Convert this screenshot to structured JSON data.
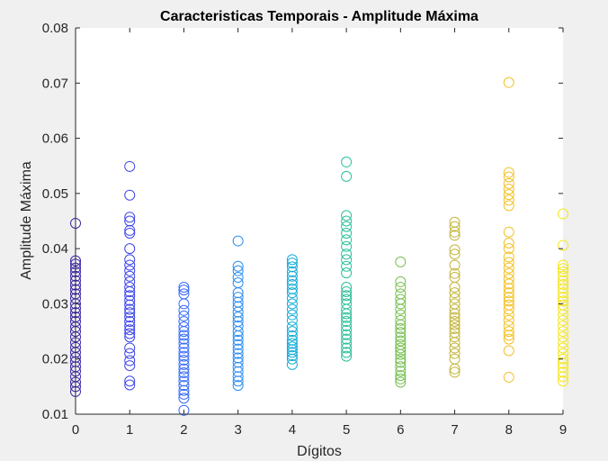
{
  "chart_data": {
    "type": "scatter",
    "title": "Caracteristicas Temporais - Amplitude Máxima",
    "xlabel": "Dígitos",
    "ylabel": "Amplitude Máxima",
    "xlim": [
      0,
      9
    ],
    "ylim": [
      0.01,
      0.08
    ],
    "xticks": [
      "0",
      "1",
      "2",
      "3",
      "4",
      "5",
      "6",
      "7",
      "8",
      "9"
    ],
    "yticks": [
      "0.01",
      "0.02",
      "0.03",
      "0.04",
      "0.05",
      "0.06",
      "0.07",
      "0.08"
    ],
    "grid": false,
    "marker": "circle",
    "series": [
      {
        "x": 0,
        "color": "#3e26a8",
        "values": [
          0.0446,
          0.0378,
          0.0372,
          0.0365,
          0.0358,
          0.035,
          0.0342,
          0.0334,
          0.0326,
          0.0318,
          0.031,
          0.03,
          0.0292,
          0.0284,
          0.0276,
          0.0268,
          0.0258,
          0.025,
          0.024,
          0.023,
          0.0221,
          0.0212,
          0.0203,
          0.0195,
          0.0186,
          0.0178,
          0.0168,
          0.0158,
          0.015,
          0.0141
        ]
      },
      {
        "x": 1,
        "color": "#3e47e8",
        "values": [
          0.0549,
          0.0497,
          0.0457,
          0.045,
          0.0433,
          0.0428,
          0.04,
          0.038,
          0.037,
          0.036,
          0.035,
          0.034,
          0.033,
          0.0322,
          0.0315,
          0.0306,
          0.0298,
          0.029,
          0.0284,
          0.0276,
          0.0268,
          0.026,
          0.0253,
          0.0246,
          0.024,
          0.022,
          0.021,
          0.0197,
          0.0188,
          0.016,
          0.0153
        ]
      },
      {
        "x": 2,
        "color": "#3a6df9",
        "values": [
          0.033,
          0.0325,
          0.0318,
          0.03,
          0.0288,
          0.0278,
          0.0268,
          0.0258,
          0.025,
          0.0243,
          0.0236,
          0.0228,
          0.022,
          0.0212,
          0.0205,
          0.0198,
          0.019,
          0.0182,
          0.0175,
          0.0168,
          0.016,
          0.0152,
          0.0143,
          0.0136,
          0.0129,
          0.0107
        ]
      },
      {
        "x": 3,
        "color": "#2c8ef2",
        "values": [
          0.0414,
          0.0368,
          0.036,
          0.0348,
          0.0338,
          0.032,
          0.0312,
          0.0303,
          0.0295,
          0.0285,
          0.0276,
          0.0268,
          0.026,
          0.025,
          0.0242,
          0.0234,
          0.0226,
          0.0218,
          0.021,
          0.0202,
          0.0194,
          0.0185,
          0.0177,
          0.0168,
          0.016,
          0.0152
        ]
      },
      {
        "x": 4,
        "color": "#14acd8",
        "values": [
          0.038,
          0.0374,
          0.0367,
          0.0358,
          0.035,
          0.0342,
          0.0335,
          0.0327,
          0.032,
          0.031,
          0.03,
          0.029,
          0.028,
          0.027,
          0.0258,
          0.025,
          0.0242,
          0.0234,
          0.0228,
          0.0222,
          0.0217,
          0.0212,
          0.0206,
          0.02,
          0.019
        ]
      },
      {
        "x": 5,
        "color": "#2cc09b",
        "values": [
          0.0557,
          0.0531,
          0.046,
          0.045,
          0.044,
          0.0428,
          0.0416,
          0.0404,
          0.039,
          0.038,
          0.0368,
          0.0356,
          0.033,
          0.0322,
          0.0315,
          0.0308,
          0.03,
          0.029,
          0.0282,
          0.0275,
          0.0268,
          0.026,
          0.0252,
          0.0244,
          0.0236,
          0.0228,
          0.022,
          0.0212,
          0.0205
        ]
      },
      {
        "x": 6,
        "color": "#78c052",
        "values": [
          0.0376,
          0.034,
          0.033,
          0.0318,
          0.0308,
          0.03,
          0.029,
          0.028,
          0.027,
          0.0262,
          0.0255,
          0.0248,
          0.024,
          0.0233,
          0.0226,
          0.022,
          0.0214,
          0.0208,
          0.02,
          0.0194,
          0.0186,
          0.0178,
          0.017,
          0.0164,
          0.0158
        ]
      },
      {
        "x": 7,
        "color": "#c4b63d",
        "values": [
          0.0448,
          0.044,
          0.043,
          0.0424,
          0.0398,
          0.039,
          0.037,
          0.0355,
          0.0348,
          0.033,
          0.032,
          0.031,
          0.03,
          0.029,
          0.0282,
          0.0275,
          0.0268,
          0.0262,
          0.0255,
          0.0248,
          0.024,
          0.023,
          0.022,
          0.021,
          0.02,
          0.0182,
          0.0176
        ]
      },
      {
        "x": 8,
        "color": "#f3c127",
        "values": [
          0.0701,
          0.0538,
          0.053,
          0.0518,
          0.0508,
          0.0498,
          0.0488,
          0.0478,
          0.043,
          0.041,
          0.04,
          0.0385,
          0.0375,
          0.0365,
          0.0355,
          0.0345,
          0.0336,
          0.0328,
          0.032,
          0.0312,
          0.0305,
          0.0298,
          0.029,
          0.028,
          0.027,
          0.026,
          0.025,
          0.0243,
          0.0236,
          0.0215,
          0.0167
        ]
      },
      {
        "x": 9,
        "color": "#f5e61d",
        "values": [
          0.0463,
          0.0406,
          0.037,
          0.0364,
          0.0358,
          0.035,
          0.0342,
          0.0335,
          0.0328,
          0.032,
          0.0312,
          0.0305,
          0.0298,
          0.029,
          0.028,
          0.027,
          0.026,
          0.025,
          0.024,
          0.023,
          0.022,
          0.021,
          0.02,
          0.0192,
          0.0185,
          0.0176,
          0.0168,
          0.016
        ]
      }
    ]
  }
}
